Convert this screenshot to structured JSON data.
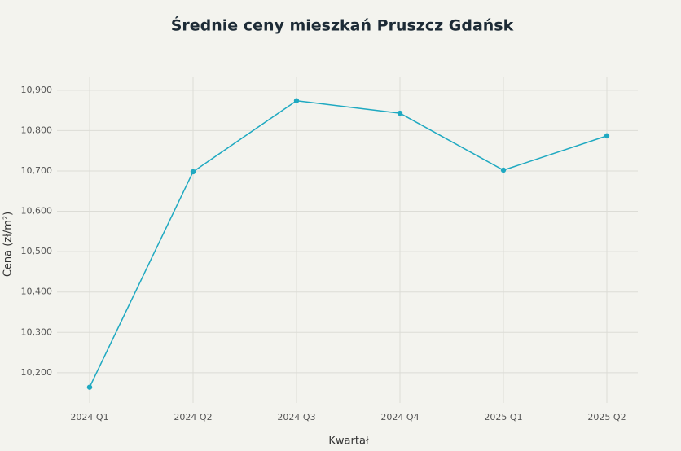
{
  "chart_data": {
    "type": "line",
    "title": "Średnie ceny mieszkań Pruszcz Gdańsk",
    "x_label": "Kwartał",
    "y_label": "Cena (zł/m²)",
    "categories": [
      "2024 Q1",
      "2024 Q2",
      "2024 Q3",
      "2024 Q4",
      "2025 Q1",
      "2025 Q2"
    ],
    "series": [
      {
        "name": "Cena",
        "color": "#1fa9c1",
        "values": [
          10164,
          10698,
          10874,
          10843,
          10702,
          10787
        ]
      }
    ],
    "ylim": [
      10125,
      10932
    ],
    "yticks": [
      {
        "value": 10200,
        "label": "10,200"
      },
      {
        "value": 10300,
        "label": "10,300"
      },
      {
        "value": 10400,
        "label": "10,400"
      },
      {
        "value": 10500,
        "label": "10,500"
      },
      {
        "value": 10600,
        "label": "10,600"
      },
      {
        "value": 10700,
        "label": "10,700"
      },
      {
        "value": 10800,
        "label": "10,800"
      },
      {
        "value": 10900,
        "label": "10,900"
      }
    ],
    "grid": true
  }
}
